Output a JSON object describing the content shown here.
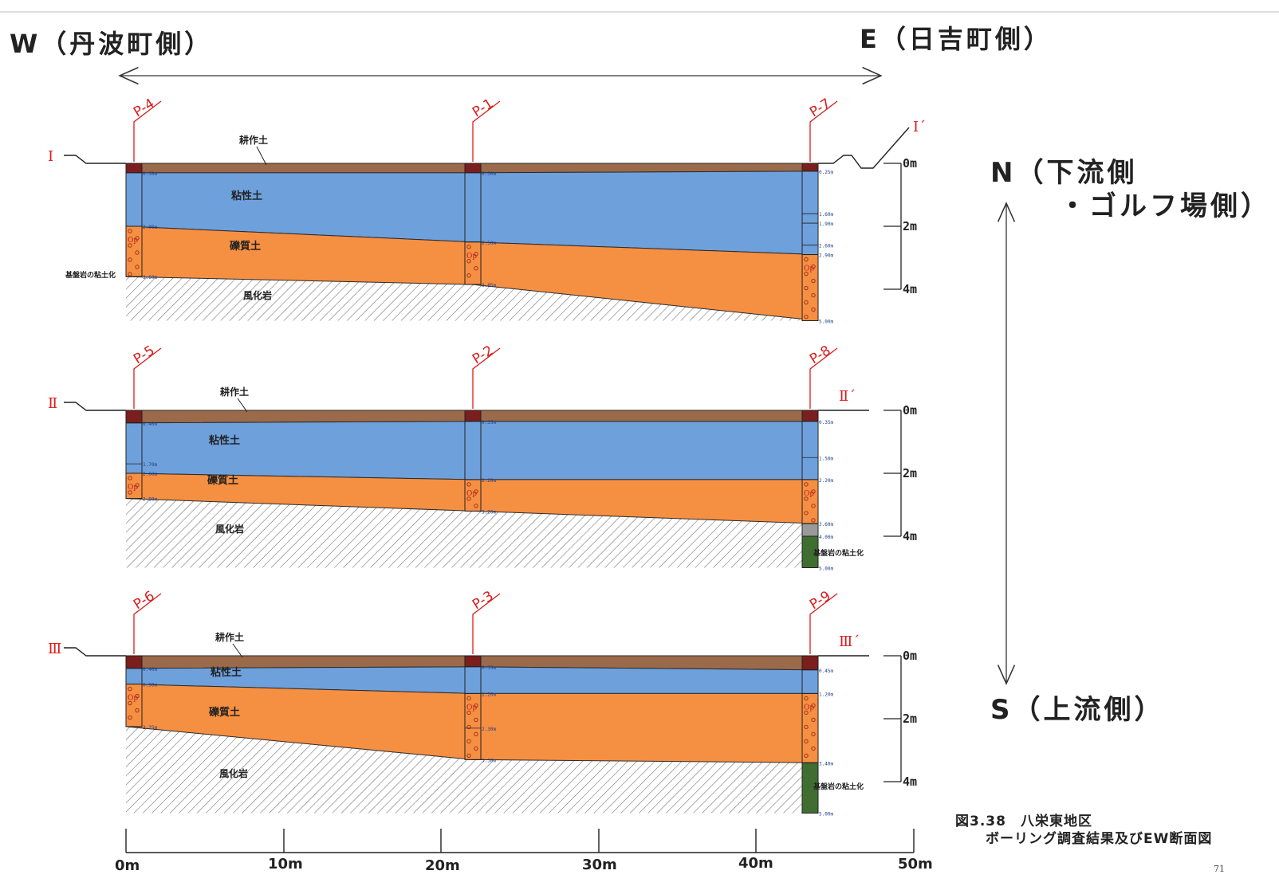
{
  "header": {
    "west_label": "W（丹波町側）",
    "east_label": "E（日吉町側）"
  },
  "direction": {
    "north_label": "N（下流側",
    "north_label_2": "・ゴルフ場側）",
    "south_label": "S（上流側）"
  },
  "layer_names": {
    "topsoil": "耕作土",
    "clay": "粘性土",
    "gravel": "礫質土",
    "weathered_rock": "風化岩",
    "bedrock_clay": "基盤岩の粘土化"
  },
  "symbol": "Op",
  "depth_scale_labels": [
    "0m",
    "2m",
    "4m"
  ],
  "horizontal_scale_labels": [
    "0m",
    "10m",
    "20m",
    "30m",
    "40m",
    "50m"
  ],
  "caption": {
    "line1": "図3.38　八栄東地区",
    "line2": "ボーリング調査結果及びEW断面図"
  },
  "page_number": "71",
  "colors": {
    "topsoil": "#9a6a4a",
    "clay": "#6ea0dc",
    "gravel": "#f58f42",
    "bedrock_clay": "#3f6e30",
    "label_red": "#d81e1e",
    "borehole_cap": "#7a1e1e"
  },
  "sections": [
    {
      "id": "I",
      "start_label": "Ⅰ",
      "end_label": "Ⅰ´",
      "boreholes": [
        {
          "name": "P-4",
          "marks": [
            "0.30m",
            "2.00m",
            "3.60m"
          ],
          "note": "基盤岩の粘土化"
        },
        {
          "name": "P-1",
          "marks": [
            "0.30m",
            "2.50m",
            "3.85m"
          ]
        },
        {
          "name": "P-7",
          "marks": [
            "0.25m",
            "1.60m",
            "1.90m",
            "2.60m",
            "2.90m",
            "5.00m"
          ]
        }
      ]
    },
    {
      "id": "II",
      "start_label": "Ⅱ",
      "end_label": "Ⅱ´",
      "boreholes": [
        {
          "name": "P-5",
          "marks": [
            "0.40m",
            "1.70m",
            "2.00m",
            "2.80m"
          ]
        },
        {
          "name": "P-2",
          "marks": [
            "0.35m",
            "2.20m",
            "3.20m"
          ]
        },
        {
          "name": "P-8",
          "marks": [
            "0.35m",
            "1.50m",
            "2.20m",
            "3.60m",
            "4.00m",
            "5.00m"
          ],
          "note": "基盤岩の粘土化"
        }
      ]
    },
    {
      "id": "III",
      "start_label": "Ⅲ",
      "end_label": "Ⅲ´",
      "boreholes": [
        {
          "name": "P-6",
          "marks": [
            "0.40m",
            "0.90m",
            "2.25m"
          ]
        },
        {
          "name": "P-3",
          "marks": [
            "0.35m",
            "1.20m",
            "2.30m",
            "3.30m"
          ]
        },
        {
          "name": "P-9",
          "marks": [
            "0.45m",
            "1.20m",
            "3.40m",
            "5.00m"
          ],
          "note": "基盤岩の粘土化"
        }
      ]
    }
  ]
}
